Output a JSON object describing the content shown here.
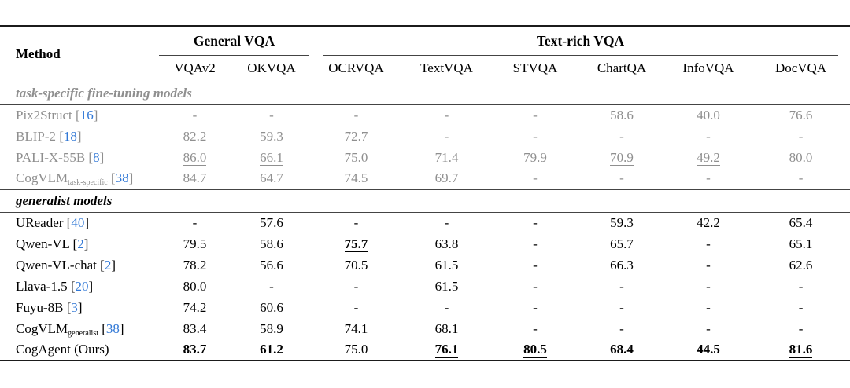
{
  "colors": {
    "muted": "#8f8f8f",
    "ref_blue": "#3178d6",
    "text": "#000000"
  },
  "table": {
    "method_header": "Method",
    "groups": [
      {
        "label": "General VQA",
        "span": 2
      },
      {
        "label": "Text-rich VQA",
        "span": 6
      }
    ],
    "columns": [
      "VQAv2",
      "OKVQA",
      "OCRVQA",
      "TextVQA",
      "STVQA",
      "ChartQA",
      "InfoVQA",
      "DocVQA"
    ],
    "sections": [
      {
        "label": "task-specific fine-tuning models",
        "muted": true,
        "rows": [
          {
            "method": "Pix2Struct",
            "sub": "",
            "ref": "16",
            "cells": [
              {
                "v": "-"
              },
              {
                "v": "-"
              },
              {
                "v": "-"
              },
              {
                "v": "-"
              },
              {
                "v": "-"
              },
              {
                "v": "58.6"
              },
              {
                "v": "40.0"
              },
              {
                "v": "76.6"
              }
            ]
          },
          {
            "method": "BLIP-2",
            "sub": "",
            "ref": "18",
            "cells": [
              {
                "v": "82.2"
              },
              {
                "v": "59.3"
              },
              {
                "v": "72.7"
              },
              {
                "v": "-"
              },
              {
                "v": "-"
              },
              {
                "v": "-"
              },
              {
                "v": "-"
              },
              {
                "v": "-"
              }
            ]
          },
          {
            "method": "PALI-X-55B",
            "sub": "",
            "ref": "8",
            "cells": [
              {
                "v": "86.0",
                "u": true
              },
              {
                "v": "66.1",
                "u": true
              },
              {
                "v": "75.0"
              },
              {
                "v": "71.4"
              },
              {
                "v": "79.9"
              },
              {
                "v": "70.9",
                "u": true
              },
              {
                "v": "49.2",
                "u": true
              },
              {
                "v": "80.0"
              }
            ]
          },
          {
            "method": "CogVLM",
            "sub": "task-specific",
            "ref": "38",
            "cells": [
              {
                "v": "84.7"
              },
              {
                "v": "64.7"
              },
              {
                "v": "74.5"
              },
              {
                "v": "69.7"
              },
              {
                "v": "-"
              },
              {
                "v": "-"
              },
              {
                "v": "-"
              },
              {
                "v": "-"
              }
            ]
          }
        ]
      },
      {
        "label": "generalist models",
        "muted": false,
        "rows": [
          {
            "method": "UReader",
            "sub": "",
            "ref": "40",
            "cells": [
              {
                "v": "-"
              },
              {
                "v": "57.6"
              },
              {
                "v": "-"
              },
              {
                "v": "-"
              },
              {
                "v": "-"
              },
              {
                "v": "59.3"
              },
              {
                "v": "42.2"
              },
              {
                "v": "65.4"
              }
            ]
          },
          {
            "method": "Qwen-VL",
            "sub": "",
            "ref": "2",
            "cells": [
              {
                "v": "79.5"
              },
              {
                "v": "58.6"
              },
              {
                "v": "75.7",
                "b": true,
                "u": true
              },
              {
                "v": "63.8"
              },
              {
                "v": "-"
              },
              {
                "v": "65.7"
              },
              {
                "v": "-"
              },
              {
                "v": "65.1"
              }
            ]
          },
          {
            "method": "Qwen-VL-chat",
            "sub": "",
            "ref": "2",
            "cells": [
              {
                "v": "78.2"
              },
              {
                "v": "56.6"
              },
              {
                "v": "70.5"
              },
              {
                "v": "61.5"
              },
              {
                "v": "-"
              },
              {
                "v": "66.3"
              },
              {
                "v": "-"
              },
              {
                "v": "62.6"
              }
            ]
          },
          {
            "method": "Llava-1.5",
            "sub": "",
            "ref": "20",
            "cells": [
              {
                "v": "80.0"
              },
              {
                "v": "-"
              },
              {
                "v": "-"
              },
              {
                "v": "61.5"
              },
              {
                "v": "-"
              },
              {
                "v": "-"
              },
              {
                "v": "-"
              },
              {
                "v": "-"
              }
            ]
          },
          {
            "method": "Fuyu-8B",
            "sub": "",
            "ref": "3",
            "cells": [
              {
                "v": "74.2"
              },
              {
                "v": "60.6"
              },
              {
                "v": "-"
              },
              {
                "v": "-"
              },
              {
                "v": "-"
              },
              {
                "v": "-"
              },
              {
                "v": "-"
              },
              {
                "v": "-"
              }
            ]
          },
          {
            "method": "CogVLM",
            "sub": "generalist",
            "ref": "38",
            "cells": [
              {
                "v": "83.4"
              },
              {
                "v": "58.9"
              },
              {
                "v": "74.1"
              },
              {
                "v": "68.1"
              },
              {
                "v": "-"
              },
              {
                "v": "-"
              },
              {
                "v": "-"
              },
              {
                "v": "-"
              }
            ]
          },
          {
            "method": "CogAgent (Ours)",
            "sub": "",
            "ref": "",
            "cells": [
              {
                "v": "83.7",
                "b": true
              },
              {
                "v": "61.2",
                "b": true
              },
              {
                "v": "75.0"
              },
              {
                "v": "76.1",
                "b": true,
                "u": true
              },
              {
                "v": "80.5",
                "b": true,
                "u": true
              },
              {
                "v": "68.4",
                "b": true
              },
              {
                "v": "44.5",
                "b": true
              },
              {
                "v": "81.6",
                "b": true,
                "u": true
              }
            ]
          }
        ]
      }
    ]
  }
}
